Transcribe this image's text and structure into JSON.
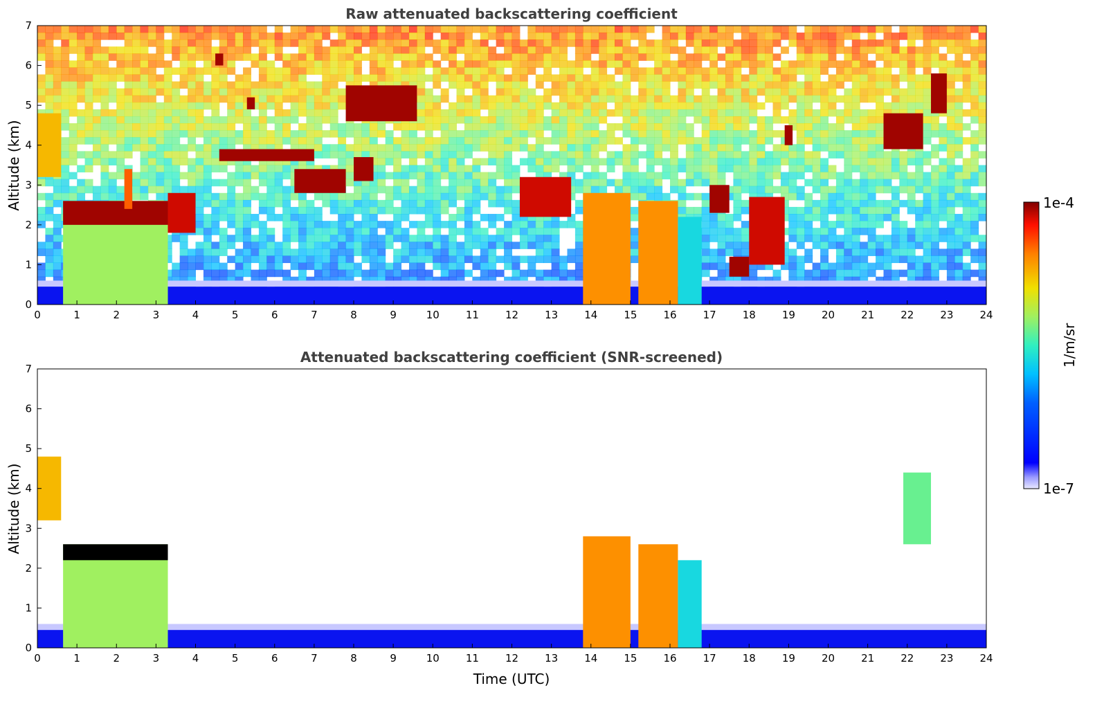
{
  "chart_data": [
    {
      "type": "heatmap",
      "title": "Raw attenuated backscattering coefficient",
      "xlabel": "",
      "ylabel": "Altitude (km)",
      "xlim": [
        0,
        24
      ],
      "ylim": [
        0,
        7
      ],
      "xticks": [
        0,
        1,
        2,
        3,
        4,
        5,
        6,
        7,
        8,
        9,
        10,
        11,
        12,
        13,
        14,
        15,
        16,
        17,
        18,
        19,
        20,
        21,
        22,
        23,
        24
      ],
      "yticks": [
        0,
        1,
        2,
        3,
        4,
        5,
        6,
        7
      ],
      "surface_layer_top_km": 0.45,
      "cloud_features": [
        {
          "t0": 0.0,
          "t1": 0.6,
          "z0": 3.2,
          "z1": 4.8,
          "level": 0.75
        },
        {
          "t0": 0.65,
          "t1": 3.3,
          "z0": 0.0,
          "z1": 2.6,
          "level": 0.6
        },
        {
          "t0": 0.65,
          "t1": 3.3,
          "z0": 2.0,
          "z1": 2.6,
          "level": 0.98
        },
        {
          "t0": 2.2,
          "t1": 2.4,
          "z0": 2.4,
          "z1": 3.4,
          "level": 0.85
        },
        {
          "t0": 3.3,
          "t1": 4.0,
          "z0": 1.8,
          "z1": 2.8,
          "level": 0.95
        },
        {
          "t0": 4.5,
          "t1": 4.7,
          "z0": 6.0,
          "z1": 6.3,
          "level": 0.98
        },
        {
          "t0": 5.3,
          "t1": 5.5,
          "z0": 4.9,
          "z1": 5.2,
          "level": 0.98
        },
        {
          "t0": 4.6,
          "t1": 7.0,
          "z0": 3.6,
          "z1": 3.9,
          "level": 0.98
        },
        {
          "t0": 6.5,
          "t1": 7.8,
          "z0": 2.8,
          "z1": 3.4,
          "level": 0.98
        },
        {
          "t0": 7.8,
          "t1": 9.6,
          "z0": 4.6,
          "z1": 5.5,
          "level": 0.98
        },
        {
          "t0": 8.0,
          "t1": 8.5,
          "z0": 3.1,
          "z1": 3.7,
          "level": 0.98
        },
        {
          "t0": 12.2,
          "t1": 13.5,
          "z0": 2.2,
          "z1": 3.2,
          "level": 0.95
        },
        {
          "t0": 13.8,
          "t1": 15.0,
          "z0": 0.0,
          "z1": 2.8,
          "level": 0.8
        },
        {
          "t0": 15.2,
          "t1": 16.2,
          "z0": 0.0,
          "z1": 2.6,
          "level": 0.8
        },
        {
          "t0": 16.2,
          "t1": 16.8,
          "z0": 0.0,
          "z1": 2.2,
          "level": 0.45
        },
        {
          "t0": 17.0,
          "t1": 17.5,
          "z0": 2.3,
          "z1": 3.0,
          "level": 0.98
        },
        {
          "t0": 17.5,
          "t1": 18.0,
          "z0": 0.7,
          "z1": 1.2,
          "level": 0.98
        },
        {
          "t0": 18.0,
          "t1": 18.9,
          "z0": 1.0,
          "z1": 2.7,
          "level": 0.95
        },
        {
          "t0": 18.9,
          "t1": 19.1,
          "z0": 4.0,
          "z1": 4.5,
          "level": 0.98
        },
        {
          "t0": 21.4,
          "t1": 22.4,
          "z0": 3.9,
          "z1": 4.8,
          "level": 0.98
        },
        {
          "t0": 22.6,
          "t1": 23.0,
          "z0": 4.8,
          "z1": 5.8,
          "level": 0.98
        }
      ]
    },
    {
      "type": "heatmap",
      "title": "Attenuated backscattering coefficient (SNR-screened)",
      "xlabel": "Time (UTC)",
      "ylabel": "Altitude (km)",
      "xlim": [
        0,
        24
      ],
      "ylim": [
        0,
        7
      ],
      "xticks": [
        0,
        1,
        2,
        3,
        4,
        5,
        6,
        7,
        8,
        9,
        10,
        11,
        12,
        13,
        14,
        15,
        16,
        17,
        18,
        19,
        20,
        21,
        22,
        23,
        24
      ],
      "yticks": [
        0,
        1,
        2,
        3,
        4,
        5,
        6,
        7
      ],
      "surface_layer_top_km": 0.45,
      "cloud_features": [
        {
          "t0": 0.0,
          "t1": 0.6,
          "z0": 3.2,
          "z1": 4.8,
          "level": 0.75
        },
        {
          "t0": 0.65,
          "t1": 3.3,
          "z0": 0.0,
          "z1": 2.6,
          "level": 0.6
        },
        {
          "t0": 0.65,
          "t1": 3.3,
          "z0": 2.2,
          "z1": 2.6,
          "level": 0.0
        },
        {
          "t0": 13.8,
          "t1": 15.0,
          "z0": 0.0,
          "z1": 2.8,
          "level": 0.8
        },
        {
          "t0": 15.2,
          "t1": 16.2,
          "z0": 0.0,
          "z1": 2.6,
          "level": 0.8
        },
        {
          "t0": 16.2,
          "t1": 16.8,
          "z0": 0.0,
          "z1": 2.2,
          "level": 0.45
        },
        {
          "t0": 21.9,
          "t1": 22.6,
          "z0": 2.6,
          "z1": 4.4,
          "level": 0.55
        }
      ]
    }
  ],
  "colorbar": {
    "label": "1/m/sr",
    "min_label": "1e-7",
    "max_label": "1e-4",
    "colormap": "jet"
  }
}
